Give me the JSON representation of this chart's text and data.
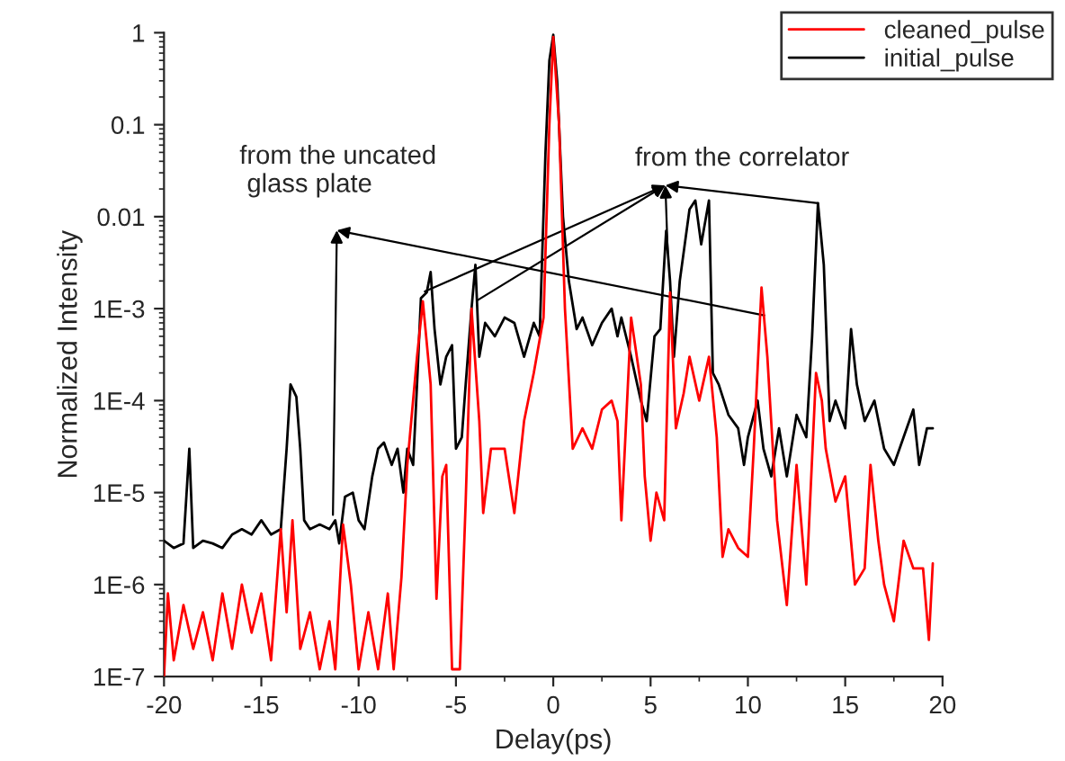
{
  "chart_data": {
    "type": "line",
    "xlabel": "Delay(ps)",
    "ylabel": "Normalized Intensity",
    "log": "y",
    "legend": "top right",
    "grid": false,
    "xlim": [
      -20,
      20
    ],
    "xticks": [
      -20,
      -15,
      -10,
      -5,
      0,
      5,
      10,
      15,
      20
    ],
    "ylim": [
      1e-07,
      1
    ],
    "yticks": [
      {
        "value": 1e-07,
        "label": "1E-7"
      },
      {
        "value": 1e-06,
        "label": "1E-6"
      },
      {
        "value": 1e-05,
        "label": "1E-5"
      },
      {
        "value": 0.0001,
        "label": "1E-4"
      },
      {
        "value": 0.001,
        "label": "1E-3"
      },
      0.01,
      0.1,
      1
    ],
    "annotations": [
      "from the uncated\n glass plate",
      {
        "text": "from the correlator",
        "x": 13.6,
        "y": 0.014
      }
    ],
    "series": [
      {
        "name": "cleaned_pulse",
        "color": "#ff0000",
        "x": [
          -20,
          -19.8,
          -19.5,
          -19,
          -18.5,
          -18,
          -17.5,
          -17,
          -16.5,
          -16,
          -15.5,
          -15,
          -14.5,
          -14,
          -13.7,
          -13.4,
          -13,
          -12.5,
          -12,
          -11.5,
          -11.2,
          -10.8,
          -10.4,
          -10,
          -9.5,
          -9,
          -8.5,
          -8.2,
          -7.8,
          -7.5,
          -7,
          -6.7,
          -6.3,
          -6,
          -5.7,
          -5.5,
          -5.2,
          -4.8,
          -4.5,
          -4.2,
          -3.8,
          -3.6,
          -3.2,
          -2.5,
          -2,
          -1.5,
          -1,
          -0.5,
          -0.2,
          0,
          0.3,
          0.6,
          1,
          1.5,
          2,
          2.5,
          3,
          3.3,
          3.5,
          4,
          4.5,
          4.7,
          5,
          5.3,
          5.7,
          6,
          6.3,
          6.7,
          7,
          7.5,
          8,
          8.4,
          8.7,
          9,
          9.5,
          10,
          10.3,
          10.7,
          11,
          11.5,
          12,
          12.5,
          13,
          13.5,
          13.8,
          14,
          14.5,
          15,
          15.5,
          16,
          16.3,
          16.7,
          17,
          17.5,
          18,
          18.5,
          19,
          19.3,
          19.5
        ],
        "values": [
          1e-07,
          8e-07,
          1.5e-07,
          6e-07,
          2e-07,
          5e-07,
          1.5e-07,
          8e-07,
          2e-07,
          1e-06,
          3e-07,
          8e-07,
          1.5e-07,
          4e-06,
          5e-07,
          5e-06,
          2e-07,
          5e-07,
          1.2e-07,
          4e-07,
          1.2e-07,
          4.5e-06,
          1e-06,
          1.2e-07,
          5e-07,
          1.2e-07,
          8e-07,
          1.2e-07,
          1.2e-06,
          2e-05,
          0.0003,
          0.0012,
          0.00015,
          7e-07,
          1.5e-05,
          2e-05,
          1.2e-07,
          1.2e-07,
          8e-06,
          0.001,
          6e-05,
          6e-06,
          3e-05,
          3e-05,
          6e-06,
          6e-05,
          0.0002,
          0.0008,
          0.1,
          0.9,
          0.1,
          0.001,
          3e-05,
          5e-05,
          3e-05,
          8e-05,
          0.0001,
          6e-05,
          5e-06,
          0.0008,
          0.00015,
          1.5e-05,
          3e-06,
          1e-05,
          5e-06,
          0.0015,
          5e-05,
          0.00012,
          0.0003,
          0.0001,
          0.0003,
          4e-05,
          2e-06,
          4e-06,
          2.5e-06,
          2e-06,
          3e-05,
          0.0017,
          0.0003,
          5e-06,
          6e-07,
          2e-05,
          1e-06,
          0.0002,
          0.0001,
          3e-05,
          8e-06,
          1.5e-05,
          1e-06,
          1.5e-06,
          2e-05,
          3e-06,
          1e-06,
          4e-07,
          3e-06,
          1.5e-06,
          1.5e-06,
          2.5e-07,
          1.7e-06
        ]
      },
      {
        "name": "initial_pulse",
        "color": "#000000",
        "x": [
          -20,
          -19.5,
          -19,
          -18.7,
          -18.5,
          -18,
          -17.5,
          -17,
          -16.5,
          -16,
          -15.5,
          -15,
          -14.5,
          -14,
          -13.7,
          -13.5,
          -13.2,
          -13,
          -12.8,
          -12.5,
          -12,
          -11.5,
          -11.2,
          -11,
          -10.7,
          -10.3,
          -10,
          -9.7,
          -9.3,
          -9,
          -8.7,
          -8.3,
          -8,
          -7.7,
          -7.5,
          -7.2,
          -7,
          -6.8,
          -6.5,
          -6.3,
          -6.1,
          -5.8,
          -5.5,
          -5.2,
          -5,
          -4.7,
          -4.5,
          -4.2,
          -4,
          -3.8,
          -3.5,
          -3,
          -2.5,
          -2,
          -1.5,
          -1,
          -0.7,
          -0.4,
          -0.2,
          0,
          0.2,
          0.5,
          0.8,
          1.2,
          1.5,
          2,
          2.5,
          3,
          3.3,
          3.5,
          4,
          4.5,
          4.8,
          5.2,
          5.5,
          5.8,
          6,
          6.2,
          6.5,
          7,
          7.3,
          7.6,
          8,
          8.2,
          8.5,
          9,
          9.5,
          9.8,
          10,
          10.5,
          10.8,
          11.2,
          11.6,
          12,
          12.5,
          13,
          13.3,
          13.6,
          13.9,
          14.2,
          14.5,
          15,
          15.3,
          15.6,
          16,
          16.5,
          17,
          17.5,
          18,
          18.5,
          18.8,
          19.2,
          19.5
        ],
        "values": [
          3e-06,
          2.5e-06,
          2.8e-06,
          3e-05,
          2.5e-06,
          3e-06,
          2.8e-06,
          2.5e-06,
          3.5e-06,
          4e-06,
          3.5e-06,
          5e-06,
          3.5e-06,
          4e-06,
          3e-05,
          0.00015,
          0.00011,
          3e-05,
          5e-06,
          4e-06,
          4.5e-06,
          4e-06,
          5e-06,
          2.8e-06,
          9e-06,
          1e-05,
          5e-06,
          4e-06,
          1.5e-05,
          3e-05,
          3.5e-05,
          2e-05,
          3e-05,
          1e-05,
          3e-05,
          2e-05,
          0.00015,
          0.0013,
          0.0015,
          0.0025,
          0.0006,
          0.00015,
          0.0003,
          0.0004,
          3e-05,
          4e-05,
          0.00015,
          0.001,
          0.003,
          0.0003,
          0.0007,
          0.0005,
          0.0008,
          0.0007,
          0.0003,
          0.0007,
          0.0005,
          0.05,
          0.5,
          0.95,
          0.3,
          0.01,
          0.002,
          0.0006,
          0.0008,
          0.0004,
          0.0007,
          0.001,
          0.0005,
          0.0008,
          0.0003,
          0.0001,
          6e-05,
          0.0005,
          0.0006,
          0.007,
          0.002,
          0.0003,
          0.002,
          0.012,
          0.015,
          0.005,
          0.015,
          0.0002,
          0.00015,
          7e-05,
          5e-05,
          2e-05,
          4e-05,
          0.0001,
          3e-05,
          1.5e-05,
          5e-05,
          1.5e-05,
          7e-05,
          4e-05,
          0.0005,
          0.014,
          0.003,
          6e-05,
          0.0001,
          5e-05,
          0.0006,
          0.00015,
          6e-05,
          0.0001,
          3e-05,
          2e-05,
          4e-05,
          8e-05,
          2e-05,
          5e-05,
          5e-05
        ]
      }
    ]
  }
}
